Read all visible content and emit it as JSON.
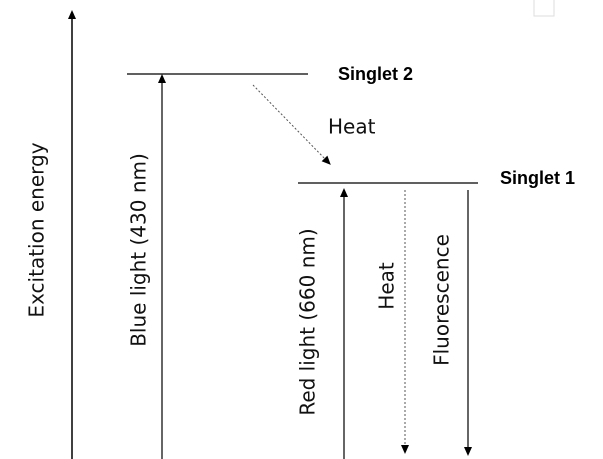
{
  "axis": {
    "label": "Excitation energy"
  },
  "levels": [
    {
      "label": "Singlet 2"
    },
    {
      "label": "Singlet 1"
    }
  ],
  "transitions": [
    {
      "label": "Blue light (430 nm)"
    },
    {
      "label": "Heat"
    },
    {
      "label": "Red light (660 nm)"
    },
    {
      "label": "Heat"
    },
    {
      "label": "Fluorescence"
    }
  ]
}
